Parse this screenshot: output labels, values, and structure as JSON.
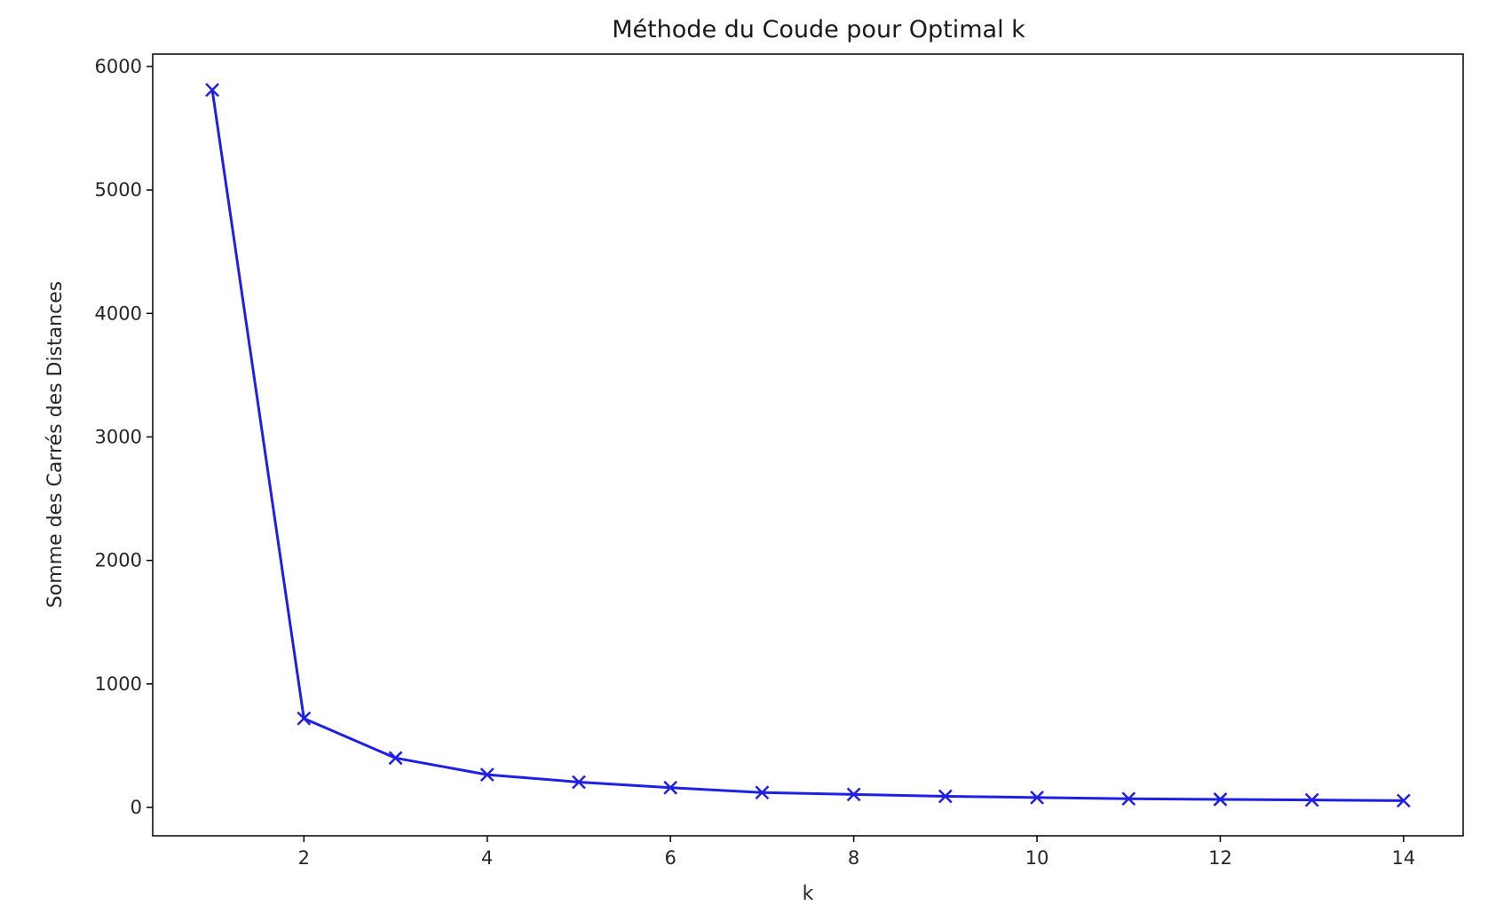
{
  "chart_data": {
    "type": "line",
    "title": "Méthode du Coude pour Optimal k",
    "xlabel": "k",
    "ylabel": "Somme des Carrés des Distances",
    "x": [
      1,
      2,
      3,
      4,
      5,
      6,
      7,
      8,
      9,
      10,
      11,
      12,
      13,
      14
    ],
    "series": [
      {
        "values": [
          5810,
          720,
          400,
          265,
          205,
          160,
          120,
          105,
          90,
          80,
          70,
          65,
          60,
          55
        ],
        "color": "#1f1fe6",
        "marker": "x-mark"
      }
    ],
    "xlim": [
      0.35,
      14.65
    ],
    "ylim": [
      -230,
      6100
    ],
    "xticks": [
      2,
      4,
      6,
      8,
      10,
      12,
      14
    ],
    "yticks": [
      0,
      1000,
      2000,
      3000,
      4000,
      5000,
      6000
    ],
    "grid": false,
    "legend": "none"
  }
}
